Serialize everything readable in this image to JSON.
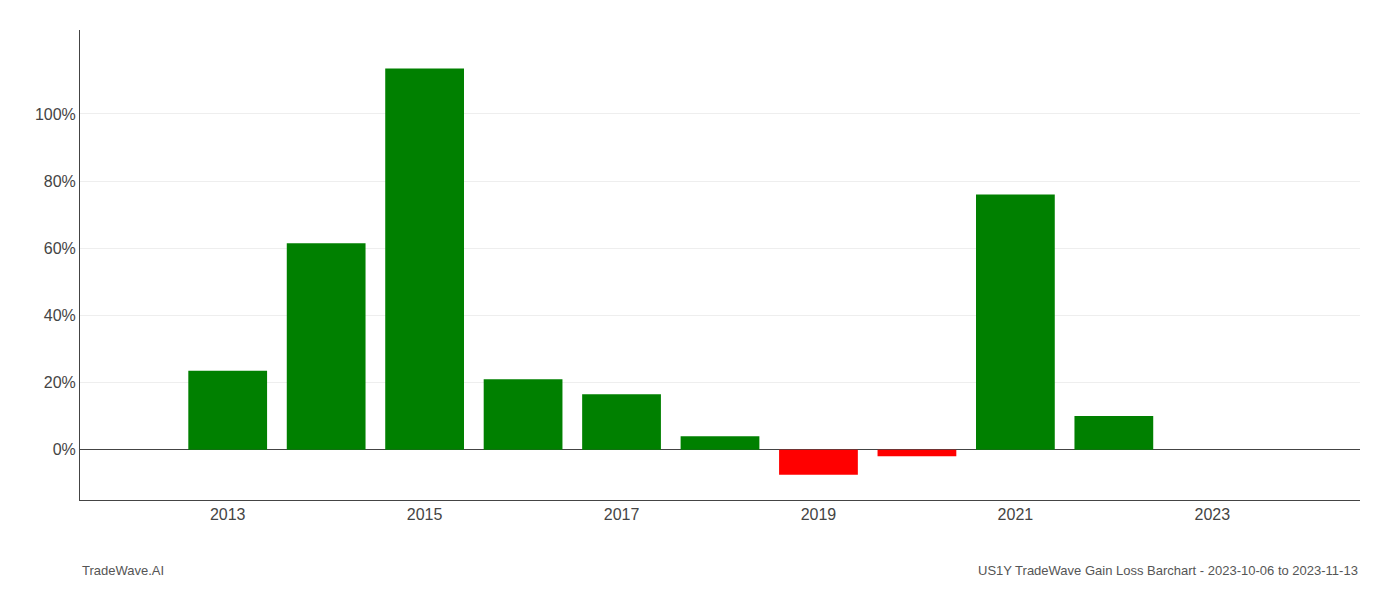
{
  "chart_data": {
    "type": "bar",
    "x": [
      2013,
      2014,
      2015,
      2016,
      2017,
      2018,
      2019,
      2020,
      2021,
      2022
    ],
    "values": [
      0.235,
      0.615,
      1.135,
      0.21,
      0.165,
      0.04,
      -0.075,
      -0.02,
      0.76,
      0.1
    ],
    "colors": [
      "#008000",
      "#008000",
      "#008000",
      "#008000",
      "#008000",
      "#008000",
      "#ff0000",
      "#ff0000",
      "#008000",
      "#008000"
    ],
    "xlim": [
      2011.5,
      2024.5
    ],
    "xticks": [
      2013,
      2015,
      2017,
      2019,
      2021,
      2023
    ],
    "ylim": [
      -0.15,
      1.25
    ],
    "yticks": [
      {
        "value": 0.0,
        "label": "0%"
      },
      {
        "value": 0.2,
        "label": "20%"
      },
      {
        "value": 0.4,
        "label": "40%"
      },
      {
        "value": 0.6,
        "label": "60%"
      },
      {
        "value": 0.8,
        "label": "80%"
      },
      {
        "value": 1.0,
        "label": "100%"
      }
    ],
    "grid": true,
    "annotations": [
      "TradeWave.AI",
      "US1Y TradeWave Gain Loss Barchart - 2023-10-06 to 2023-11-13"
    ]
  }
}
